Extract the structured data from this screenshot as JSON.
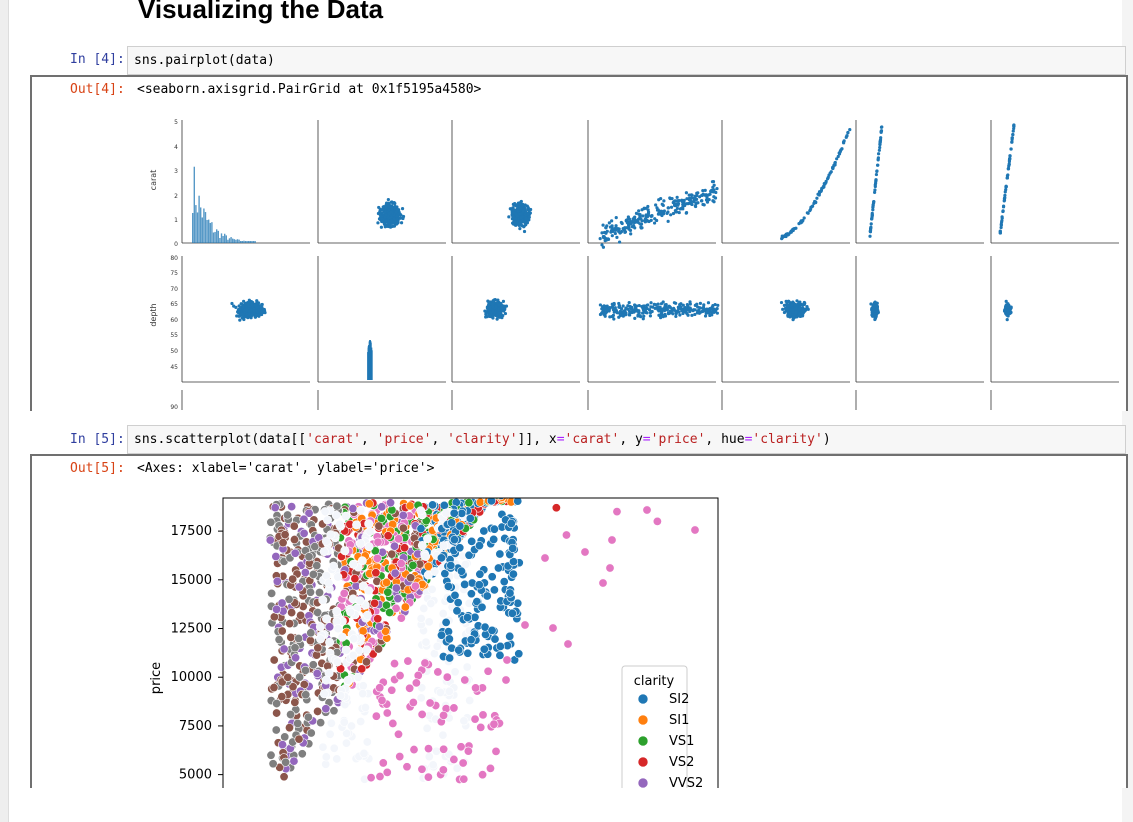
{
  "page": {
    "heading": "Visualizing the Data"
  },
  "colors": {
    "seaborn_blue": "#1f77b4",
    "in_prompt": "#303f9f",
    "out_prompt": "#d84315"
  },
  "cells": [
    {
      "in_prompt": "In [4]:",
      "code": "sns.pairplot(data)",
      "out_prompt": "Out[4]:",
      "out_text": "<seaborn.axisgrid.PairGrid at 0x1f5195a4580>"
    },
    {
      "in_prompt": "In [5]:",
      "code_parts": [
        "sns.scatterplot(data[[",
        "'carat'",
        ", ",
        "'price'",
        ", ",
        "'clarity'",
        "]], x",
        "=",
        "'carat'",
        ", y",
        "=",
        "'price'",
        ", hue",
        "=",
        "'clarity'",
        ")"
      ],
      "out_prompt": "Out[5]:",
      "out_text": "<Axes: xlabel='carat', ylabel='price'>"
    }
  ],
  "pairplot": {
    "ylabels": [
      "carat",
      "depth"
    ],
    "carat_ticks": [
      "5",
      "4",
      "3",
      "2",
      "1",
      "0"
    ],
    "depth_ticks": [
      "80",
      "75",
      "70",
      "65",
      "60",
      "55",
      "50",
      "45"
    ],
    "third_row_tick": "90"
  },
  "chart_data": [
    {
      "type": "scatter",
      "title": "",
      "xlabel": "",
      "ylabel": "price",
      "ylim": [
        3800,
        19200
      ],
      "yticks": [
        5000,
        7500,
        10000,
        12500,
        15000,
        17500
      ],
      "legend": {
        "title": "clarity",
        "placement": "bottom-right"
      },
      "series": [
        {
          "name": "SI2",
          "color": "#1f77b4"
        },
        {
          "name": "SI1",
          "color": "#ff7f0e"
        },
        {
          "name": "VS1",
          "color": "#2ca02c"
        },
        {
          "name": "VS2",
          "color": "#d62728"
        },
        {
          "name": "VVS2",
          "color": "#9467bd"
        }
      ],
      "extra_series_colors": [
        "#8c564b",
        "#e377c2",
        "#7f7f7f"
      ],
      "notable_points": [
        {
          "series": "VS2",
          "x": 3.5,
          "y": 18700
        },
        {
          "series": "extra",
          "x": 4.5,
          "y": 18000
        },
        {
          "series": "extra",
          "x": 4.1,
          "y": 18500
        },
        {
          "series": "extra",
          "x": 3.6,
          "y": 17300
        }
      ]
    }
  ]
}
